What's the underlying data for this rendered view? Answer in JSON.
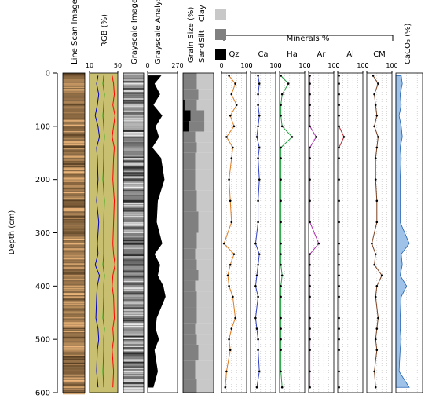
{
  "chart_data": {
    "type": "log",
    "ylabel": "Depth (cm)",
    "ylim": [
      0,
      600
    ],
    "yticks": [
      0,
      100,
      200,
      300,
      400,
      500,
      600
    ],
    "depths": [
      5,
      20,
      40,
      60,
      80,
      100,
      120,
      140,
      160,
      200,
      240,
      280,
      320,
      340,
      360,
      380,
      400,
      420,
      460,
      480,
      500,
      520,
      560,
      590
    ],
    "images": [
      {
        "title": "Line Scan Image",
        "color": "#8a6a45"
      },
      {
        "title": "Grayscale Image",
        "color": "#808080"
      }
    ],
    "rgb": {
      "title": "RGB (%)",
      "xlim": [
        10,
        50
      ],
      "xticks": [
        10,
        50
      ],
      "series": [
        {
          "color": "#ff0000",
          "values": [
            42,
            44,
            45,
            43,
            46,
            44,
            42,
            45,
            44,
            43,
            45,
            44,
            43,
            44,
            46,
            43,
            42,
            44,
            45,
            43,
            44,
            42,
            44,
            43
          ]
        },
        {
          "color": "#00a000",
          "values": [
            30,
            29,
            31,
            30,
            29,
            30,
            31,
            30,
            30,
            29,
            31,
            30,
            30,
            30,
            29,
            31,
            30,
            30,
            29,
            31,
            30,
            30,
            29,
            30
          ]
        },
        {
          "color": "#0000c0",
          "values": [
            22,
            20,
            23,
            21,
            18,
            22,
            24,
            20,
            21,
            22,
            20,
            23,
            21,
            22,
            18,
            24,
            21,
            20,
            19,
            22,
            23,
            21,
            20,
            22
          ]
        }
      ]
    },
    "grayscale": {
      "title": "Grayscale Analysis",
      "xlim": [
        0,
        270
      ],
      "xticks": [
        0,
        270
      ],
      "color": "#000000",
      "values": [
        120,
        60,
        110,
        50,
        130,
        70,
        100,
        40,
        120,
        150,
        90,
        80,
        130,
        60,
        110,
        90,
        140,
        160,
        80,
        70,
        100,
        60,
        90,
        50
      ]
    },
    "grain_size": {
      "title": "Grain Size (%)",
      "xlim": [
        0,
        100
      ],
      "series": [
        {
          "name": "Sand",
          "color": "#000000",
          "values": [
            0,
            0,
            0,
            5,
            25,
            20,
            0,
            0,
            0,
            0,
            0,
            0,
            0,
            0,
            0,
            0,
            0,
            0,
            0,
            0,
            0,
            0,
            0,
            0
          ]
        },
        {
          "name": "Silt",
          "color": "#808080",
          "values": [
            45,
            45,
            50,
            40,
            45,
            50,
            40,
            45,
            40,
            40,
            45,
            50,
            45,
            40,
            45,
            50,
            40,
            45,
            45,
            40,
            45,
            50,
            40,
            45
          ]
        },
        {
          "name": "Clay",
          "color": "#c8c8c8",
          "values": [
            55,
            55,
            50,
            55,
            30,
            30,
            60,
            55,
            60,
            60,
            55,
            50,
            55,
            60,
            55,
            50,
            60,
            55,
            55,
            60,
            55,
            50,
            60,
            55
          ]
        }
      ]
    },
    "minerals": {
      "title": "Minerals %",
      "xlim": [
        0,
        100
      ],
      "xticks": [
        0,
        100
      ],
      "series": [
        {
          "name": "Qz",
          "color": "#e07b20",
          "values": [
            30,
            55,
            40,
            60,
            35,
            50,
            20,
            45,
            40,
            30,
            35,
            40,
            10,
            50,
            35,
            25,
            30,
            45,
            55,
            40,
            30,
            35,
            20,
            15
          ]
        },
        {
          "name": "Ca",
          "color": "#3040c0",
          "values": [
            30,
            35,
            30,
            30,
            35,
            30,
            25,
            35,
            30,
            35,
            30,
            30,
            20,
            35,
            30,
            25,
            20,
            30,
            20,
            25,
            30,
            30,
            35,
            25
          ]
        },
        {
          "name": "Ha",
          "color": "#20a040",
          "values": [
            5,
            35,
            10,
            5,
            5,
            10,
            50,
            5,
            5,
            5,
            5,
            5,
            5,
            5,
            5,
            10,
            5,
            5,
            5,
            5,
            5,
            5,
            5,
            10
          ]
        },
        {
          "name": "Ar",
          "color": "#b030b0",
          "values": [
            5,
            5,
            5,
            5,
            5,
            5,
            30,
            5,
            5,
            5,
            5,
            5,
            40,
            5,
            5,
            5,
            5,
            5,
            5,
            5,
            5,
            5,
            5,
            5
          ]
        },
        {
          "name": "Al",
          "color": "#c02030",
          "values": [
            5,
            5,
            5,
            5,
            5,
            5,
            25,
            5,
            5,
            5,
            5,
            5,
            5,
            5,
            5,
            5,
            5,
            5,
            5,
            5,
            5,
            5,
            5,
            5
          ]
        },
        {
          "name": "CM",
          "color": "#7a4020",
          "values": [
            25,
            45,
            30,
            35,
            40,
            30,
            45,
            40,
            35,
            35,
            40,
            40,
            20,
            35,
            30,
            60,
            40,
            35,
            45,
            40,
            35,
            40,
            30,
            35
          ]
        }
      ]
    },
    "caco3": {
      "title": "CaCO₃ (%)",
      "xlim": [
        0,
        50
      ],
      "color": "#9fc3e8",
      "values": [
        10,
        12,
        8,
        10,
        6,
        10,
        12,
        8,
        10,
        8,
        8,
        8,
        25,
        10,
        12,
        8,
        20,
        10,
        8,
        8,
        10,
        8,
        6,
        25
      ]
    }
  }
}
